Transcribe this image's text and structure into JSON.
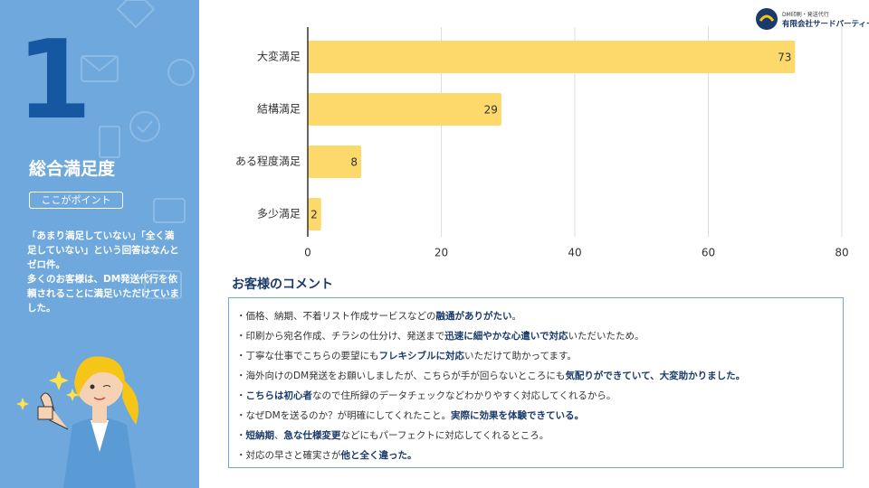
{
  "sidebar": {
    "number": "1",
    "title": "総合満足度",
    "badge": "ここがポイント",
    "paragraphs": [
      "「あまり満足していない」「全く満足していない」という回答はなんとゼロ件。",
      "多くのお客様は、DM発送代行を依頼されることに満足いただけていました。"
    ]
  },
  "logo": {
    "sub": "DM印刷・発送代行",
    "name": "有限会社サードパーティー"
  },
  "chart_data": {
    "type": "bar",
    "orientation": "horizontal",
    "categories": [
      "大変満足",
      "結構満足",
      "ある程度満足",
      "多少満足"
    ],
    "values": [
      73,
      29,
      8,
      2
    ],
    "color": "#fdd86b",
    "xlim": [
      0,
      80
    ],
    "xticks": [
      0,
      20,
      40,
      60,
      80
    ],
    "grid": true
  },
  "comments": {
    "title": "お客様のコメント",
    "items": [
      [
        {
          "text": "・価格、納期、不着リスト作成サービスなどの",
          "bold": false
        },
        {
          "text": "融通がありがたい",
          "bold": true
        },
        {
          "text": "。",
          "bold": false
        }
      ],
      [
        {
          "text": "・印刷から宛名作成、チラシの仕分け、発送まで",
          "bold": false
        },
        {
          "text": "迅速に細やかな心遣いで対応",
          "bold": true
        },
        {
          "text": "いただいたため。",
          "bold": false
        }
      ],
      [
        {
          "text": "・丁寧な仕事でこちらの要望にも",
          "bold": false
        },
        {
          "text": "フレキシブルに対応",
          "bold": true
        },
        {
          "text": "いただけて助かってます。",
          "bold": false
        }
      ],
      [
        {
          "text": "・海外向けのDM発送をお願いしましたが、こちらが手が回らないところにも",
          "bold": false
        },
        {
          "text": "気配りができていて、大変助かりました。",
          "bold": true
        }
      ],
      [
        {
          "text": "・",
          "bold": false
        },
        {
          "text": "こちらは初心者",
          "bold": true
        },
        {
          "text": "なので住所録のデータチェックなどわかりやすく対応してくれるから。",
          "bold": false
        }
      ],
      [
        {
          "text": "・なぜDMを送るのか？が明確にしてくれたこと。",
          "bold": false
        },
        {
          "text": "実際に効果を体験できている。",
          "bold": true
        }
      ],
      [
        {
          "text": "・",
          "bold": false
        },
        {
          "text": "短納期",
          "bold": true
        },
        {
          "text": "、",
          "bold": false
        },
        {
          "text": "急な仕様変更",
          "bold": true
        },
        {
          "text": "などにもパーフェクトに対応してくれるところ。",
          "bold": false
        }
      ],
      [
        {
          "text": "・対応の早さと確実さが",
          "bold": false
        },
        {
          "text": "他と全く違った。",
          "bold": true
        }
      ]
    ]
  }
}
